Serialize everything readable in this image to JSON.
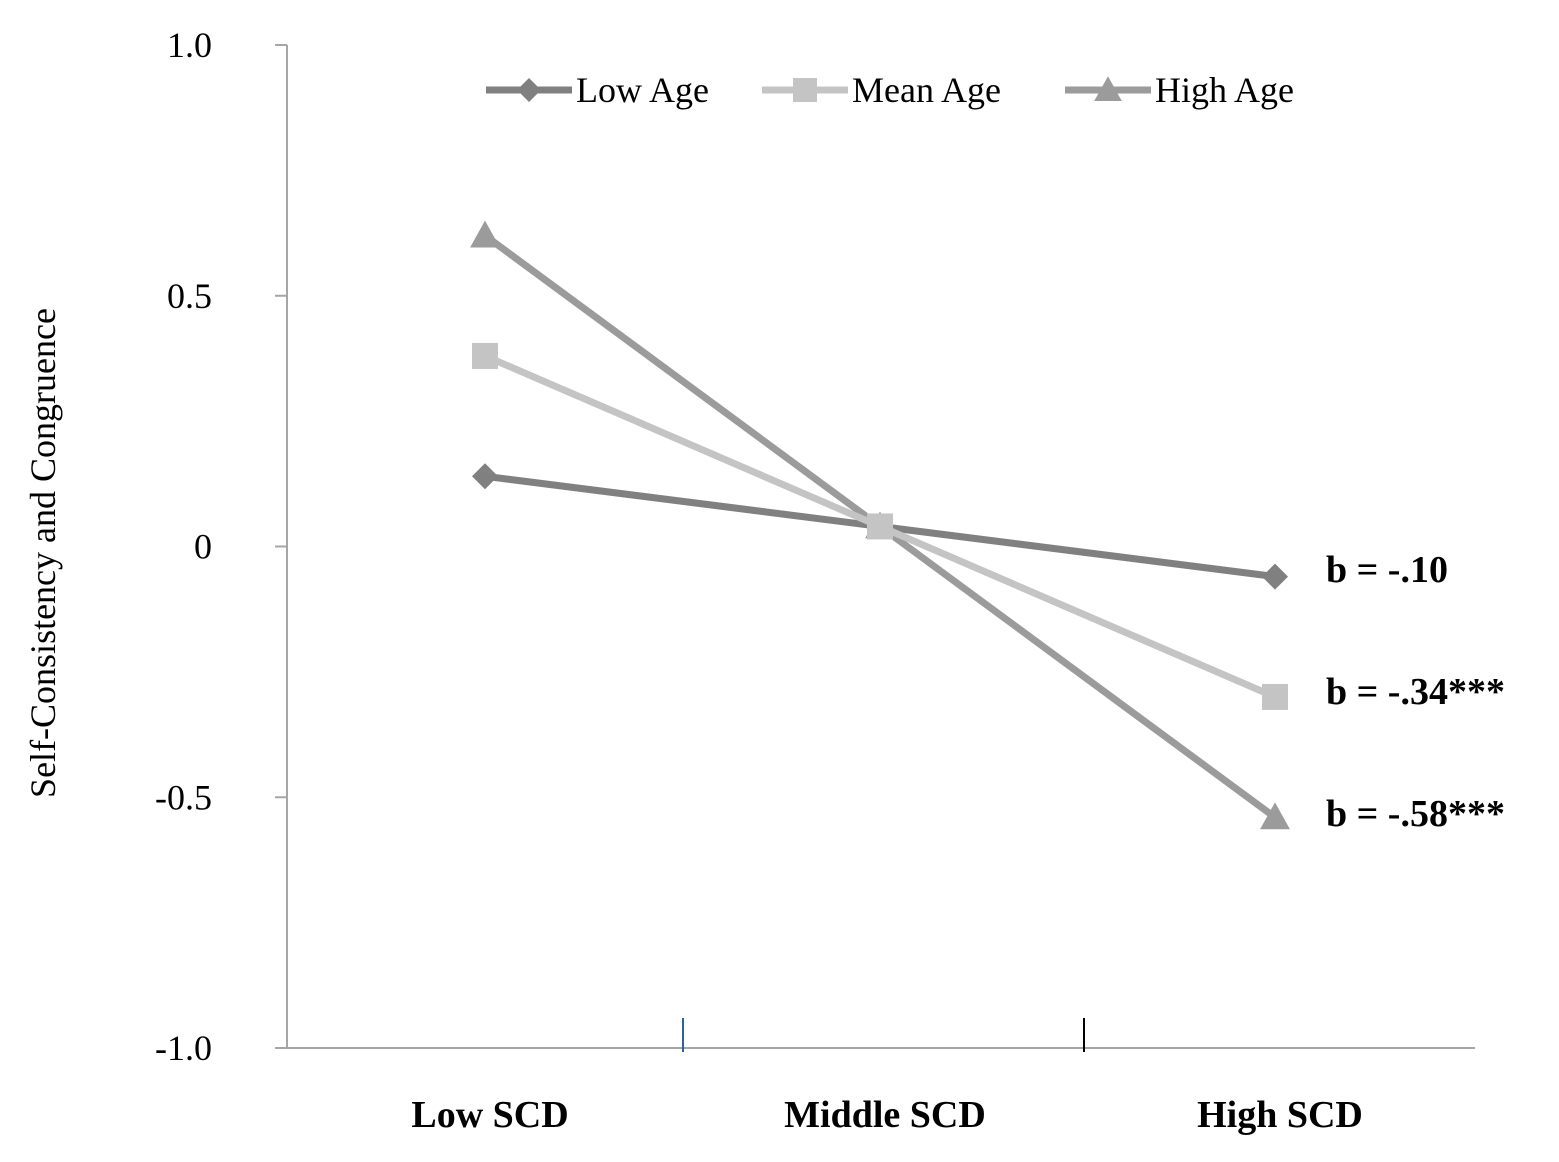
{
  "chart_data": {
    "type": "line",
    "title": "",
    "xlabel": "",
    "ylabel": "Self-Consistency and Congruence",
    "categories": [
      "Low SCD",
      "Middle SCD",
      "High SCD"
    ],
    "ylim": [
      -1.0,
      1.0
    ],
    "yticks": [
      {
        "value": 1.0,
        "label": "1.0"
      },
      {
        "value": 0.5,
        "label": "0.5"
      },
      {
        "value": 0,
        "label": "0"
      },
      {
        "value": -0.5,
        "label": "-0.5"
      },
      {
        "value": -1.0,
        "label": "-1.0"
      }
    ],
    "series": [
      {
        "name": "Low Age",
        "values": [
          0.14,
          0.04,
          -0.06
        ],
        "marker": "diamond",
        "color": "#808080"
      },
      {
        "name": "Mean  Age",
        "values": [
          0.38,
          0.04,
          -0.3
        ],
        "marker": "square",
        "color": "#c4c4c4"
      },
      {
        "name": "High Age",
        "values": [
          0.62,
          0.04,
          -0.54
        ],
        "marker": "triangle",
        "color": "#9b9b9b"
      }
    ],
    "annotations": [
      {
        "text": "b = -.10",
        "series": "Low Age"
      },
      {
        "text": "b = -.34***",
        "series": "Mean  Age"
      },
      {
        "text": "b = -.58***",
        "series": "High Age"
      }
    ],
    "legend_position": "top-center",
    "grid": false,
    "axis_color": "#a6a6a6",
    "tick_mark_colors": [
      "#2e5f9e",
      "#000000"
    ]
  }
}
